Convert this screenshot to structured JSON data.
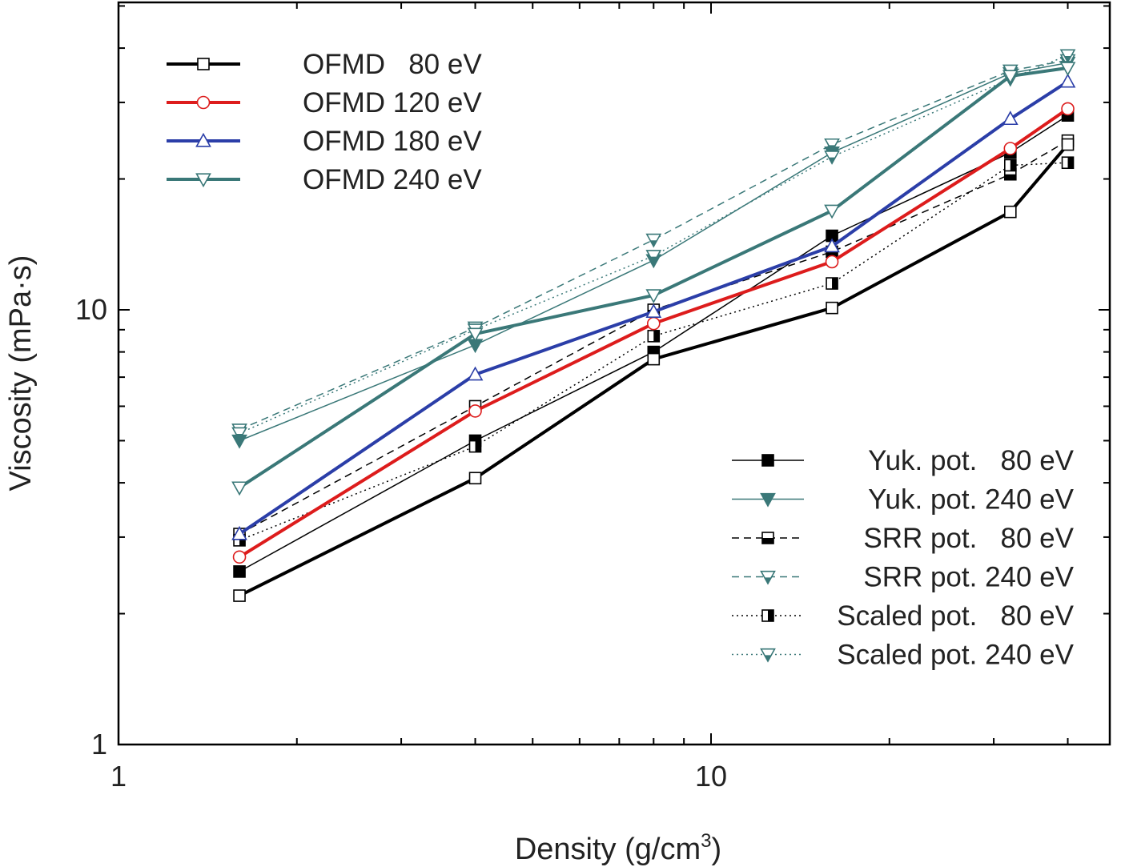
{
  "chart_data": {
    "type": "line",
    "xlabel": "Density (g/cm",
    "xlabel_sup": "3",
    "xlabel_end": ")",
    "ylabel": "Viscosity (mPa·s)",
    "xscale": "log",
    "yscale": "log",
    "xlim": [
      1,
      50
    ],
    "ylim": [
      1,
      50
    ],
    "x_ticks": [
      {
        "value": 1,
        "label": "1"
      },
      {
        "value": 10,
        "label": "10"
      }
    ],
    "y_ticks": [
      {
        "value": 1,
        "label": "1"
      },
      {
        "value": 10,
        "label": "10"
      }
    ],
    "grid": false,
    "legend_placement": [
      "top-left",
      "bottom-right"
    ],
    "x": [
      1.6,
      4.0,
      8.0,
      16.0,
      32.0,
      40.0
    ],
    "series": [
      {
        "name": "OFMD   80 eV",
        "color": "#000000",
        "values": [
          2.2,
          4.1,
          7.7,
          10.1,
          16.8,
          24.0
        ],
        "marker": "square-open",
        "line": "solid",
        "width": 4,
        "legend": 1
      },
      {
        "name": "OFMD 120 eV",
        "color": "#dd1c1c",
        "values": [
          2.7,
          5.85,
          9.3,
          12.9,
          23.5,
          29.0
        ],
        "marker": "circle-open",
        "line": "solid",
        "width": 4,
        "legend": 1
      },
      {
        "name": "OFMD 180 eV",
        "color": "#2b3ea8",
        "values": [
          3.05,
          7.1,
          9.9,
          14.0,
          27.5,
          33.5
        ],
        "marker": "triangle-up-open",
        "line": "solid",
        "width": 4,
        "legend": 1
      },
      {
        "name": "OFMD 240 eV",
        "color": "#3a7878",
        "values": [
          3.9,
          8.8,
          10.8,
          16.9,
          34.5,
          36.0
        ],
        "marker": "triangle-down-open",
        "line": "solid",
        "width": 4,
        "legend": 1
      },
      {
        "name": "Yuk. pot.   80 eV",
        "color": "#000000",
        "values": [
          2.5,
          5.0,
          8.0,
          14.8,
          23.0,
          28.0
        ],
        "marker": "square-filled",
        "line": "solid",
        "width": 1.5,
        "legend": 2
      },
      {
        "name": "Yuk. pot. 240 eV",
        "color": "#3a7878",
        "values": [
          5.0,
          8.3,
          13.0,
          23.0,
          35.0,
          37.0
        ],
        "marker": "triangle-down-filled",
        "line": "solid",
        "width": 1.5,
        "legend": 2
      },
      {
        "name": "SRR pot.   80 eV",
        "color": "#000000",
        "values": [
          3.05,
          6.0,
          10.0,
          13.6,
          20.5,
          24.5
        ],
        "marker": "square-half-h",
        "line": "dashed",
        "width": 1.5,
        "legend": 2
      },
      {
        "name": "SRR pot. 240 eV",
        "color": "#3a7878",
        "values": [
          5.3,
          9.1,
          14.5,
          24.0,
          35.5,
          37.5
        ],
        "marker": "triangle-down-half",
        "line": "dashed",
        "width": 1.5,
        "legend": 2
      },
      {
        "name": "Scaled pot.   80 eV",
        "color": "#000000",
        "values": [
          2.95,
          4.85,
          8.7,
          11.5,
          21.5,
          21.8
        ],
        "marker": "square-half-v",
        "line": "dotted",
        "width": 1.5,
        "legend": 2
      },
      {
        "name": "Scaled pot. 240 eV",
        "color": "#3a7878",
        "values": [
          5.2,
          9.0,
          13.3,
          22.5,
          34.0,
          38.5
        ],
        "marker": "triangle-down-half",
        "line": "dotted",
        "width": 1.5,
        "legend": 2
      }
    ]
  }
}
